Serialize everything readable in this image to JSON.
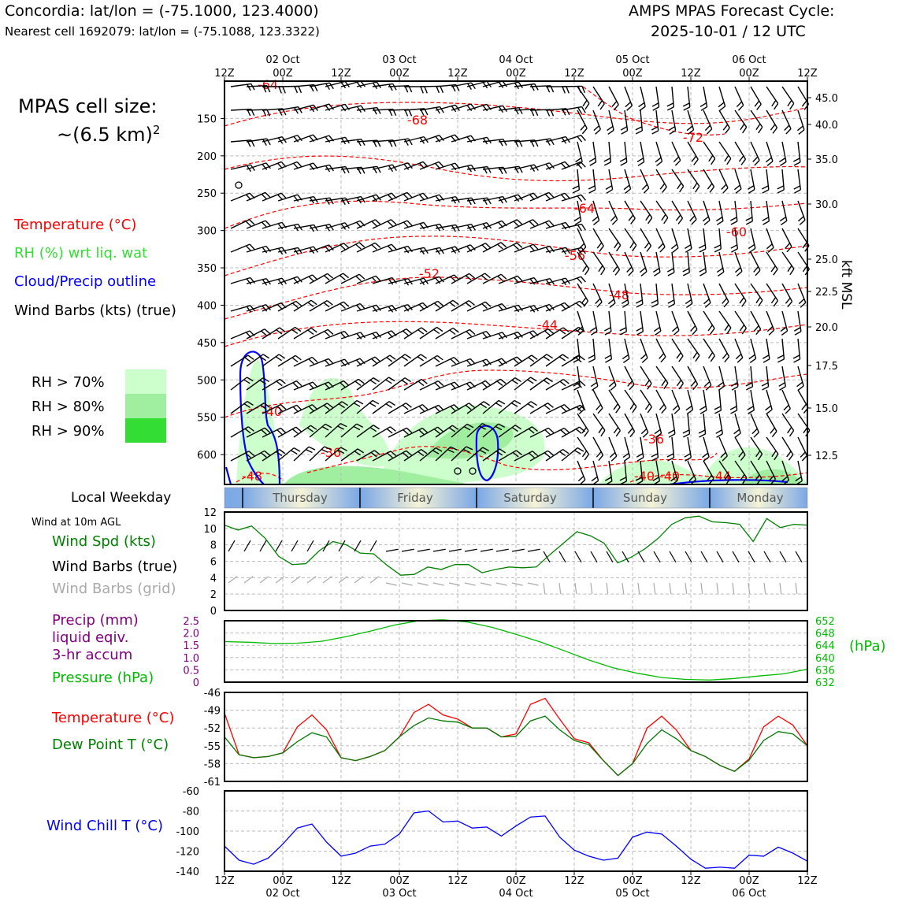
{
  "header": {
    "line1": "Concordia: lat/lon = (-75.1000, 123.4000)",
    "line2": "Nearest cell 1692079: lat/lon = (-75.1088, 123.3322)",
    "right1": "AMPS MPAS Forecast Cycle:",
    "right2": "2025-10-01 / 12 UTC"
  },
  "sidebar": {
    "cell_size_1": "MPAS cell size:",
    "cell_size_2": "~(6.5 km)",
    "cell_size_sup": "2",
    "temp": "Temperature (°C)",
    "rh": "RH (%) wrt liq. wat",
    "cloud": "Cloud/Precip outline",
    "wind": "Wind Barbs (kts) (true)",
    "rh70": "RH > 70%",
    "rh80": "RH > 80%",
    "rh90": "RH > 90%",
    "local_weekday": "Local Weekday",
    "wind10m": "Wind at 10m AGL",
    "wind_spd": "Wind Spd (kts)",
    "wind_barbs_true": "Wind Barbs (true)",
    "wind_barbs_grid": "Wind Barbs (grid)",
    "precip1": "Precip (mm)",
    "precip2": "liquid eqiv.",
    "precip3": "3-hr accum",
    "pressure": "Pressure (hPa)",
    "temp2": "Temperature (°C)",
    "dewpt": "Dew Point T (°C)",
    "windchill": "Wind Chill T (°C)"
  },
  "colors": {
    "temp": "#ff0000",
    "rh": "#33dd33",
    "cloud": "#0000ff",
    "wind": "#000000",
    "grid_barbs": "#a0a0a0",
    "precip": "#800080",
    "pressure": "#00bb00",
    "dewpoint": "#007700",
    "windchill": "#0000ff",
    "rh70": "#ccffcc",
    "rh80": "#a0eea0",
    "rh90": "#33dd33"
  },
  "chart_data": [
    {
      "type": "line",
      "name": "time-height cross section",
      "time_ticks": [
        "12Z",
        "00Z",
        "12Z",
        "00Z",
        "12Z",
        "00Z",
        "12Z",
        "00Z",
        "12Z",
        "00Z",
        "12Z"
      ],
      "date_labels": [
        "02 Oct",
        "03 Oct",
        "04 Oct",
        "05 Oct",
        "06 Oct"
      ],
      "y_pressure_ticks": [
        150,
        200,
        250,
        300,
        350,
        400,
        450,
        500,
        550,
        600
      ],
      "y_kft_ticks": [
        "45.0",
        "40.0",
        "35.0",
        "30.0",
        "25.0",
        "22.5",
        "20.0",
        "17.5",
        "15.0",
        "12.5"
      ],
      "y_right_label": "kft MSL",
      "ylim_hpa": [
        100,
        640
      ],
      "temperature_contour_labels": [
        "-64",
        "-68",
        "-72",
        "-64",
        "-60",
        "-56",
        "-52",
        "-48",
        "-44",
        "-40",
        "-36",
        "-36",
        "-40",
        "-40",
        "-44",
        "-48"
      ]
    },
    {
      "type": "line",
      "name": "weekday strip",
      "days": [
        "Thursday",
        "Friday",
        "Saturday",
        "Sunday",
        "Monday"
      ]
    },
    {
      "type": "line",
      "name": "wind speed",
      "ylim": [
        0,
        12
      ],
      "yticks": [
        0,
        2,
        4,
        6,
        8,
        10,
        12
      ],
      "series": [
        {
          "name": "Wind Spd (kts)",
          "values": [
            10.4,
            9.8,
            10.3,
            8.8,
            6.6,
            5.6,
            5.7,
            7.3,
            8.4,
            8.0,
            7.0,
            6.9,
            5.5,
            4.3,
            4.4,
            5.3,
            5.0,
            5.6,
            5.6,
            4.6,
            5.0,
            5.3,
            5.2,
            5.3,
            6.8,
            8.2,
            9.6,
            9.1,
            8.2,
            5.8,
            6.5,
            7.5,
            8.8,
            10.5,
            11.3,
            11.5,
            10.8,
            10.7,
            10.5,
            8.4,
            11.2,
            10.1,
            10.5,
            10.4
          ]
        }
      ]
    },
    {
      "type": "line",
      "name": "precip and pressure",
      "ylim_left": [
        0,
        2.5
      ],
      "yticks_left": [
        "0",
        "0.5",
        "1.0",
        "1.5",
        "2.0",
        "2.5"
      ],
      "yticks_right": [
        "632",
        "636",
        "640",
        "644",
        "648",
        "652"
      ],
      "ylim_right": [
        632,
        652
      ],
      "right_unit": "(hPa)",
      "series": [
        {
          "name": "Pressure (hPa)",
          "values": [
            645.2,
            645.0,
            644.6,
            644.7,
            645.3,
            646.8,
            648.6,
            650.6,
            652.0,
            652.3,
            651.6,
            649.9,
            647.6,
            645.1,
            642.2,
            639.2,
            636.7,
            634.9,
            633.5,
            632.9,
            632.7,
            633.2,
            634.0,
            634.7,
            636.2
          ]
        },
        {
          "name": "Precip (mm)",
          "values": [
            0,
            0,
            0,
            0,
            0,
            0,
            0,
            0,
            0,
            0,
            0,
            0,
            0,
            0,
            0,
            0,
            0,
            0,
            0,
            0,
            0,
            0,
            0,
            0,
            0,
            0,
            0,
            0,
            0,
            0,
            0,
            0,
            0,
            0,
            0,
            0,
            0,
            0,
            0,
            0,
            0,
            0,
            0,
            0
          ]
        }
      ]
    },
    {
      "type": "line",
      "name": "temperature and dew point",
      "ylim": [
        -61,
        -46
      ],
      "yticks": [
        -61,
        -58,
        -55,
        -52,
        -49,
        -46
      ],
      "series": [
        {
          "name": "Temperature (°C)",
          "values": [
            -49.5,
            -56.5,
            -57.0,
            -56.8,
            -56.2,
            -51.8,
            -49.8,
            -52.3,
            -57.0,
            -57.5,
            -56.8,
            -55.8,
            -53.5,
            -49.4,
            -48.0,
            -49.8,
            -50.5,
            -52.0,
            -52.0,
            -53.5,
            -53.0,
            -48.0,
            -47.0,
            -50.5,
            -53.8,
            -54.5,
            -57.5,
            -60.0,
            -58.0,
            -52.0,
            -50.0,
            -52.3,
            -55.8,
            -56.8,
            -58.3,
            -59.3,
            -57.2,
            -51.8,
            -50.0,
            -51.5,
            -55.0
          ]
        },
        {
          "name": "Dew Point T (°C)",
          "values": [
            -53.5,
            -56.5,
            -57.0,
            -56.8,
            -56.2,
            -54.3,
            -52.8,
            -53.5,
            -57.0,
            -57.5,
            -56.8,
            -55.8,
            -53.5,
            -51.6,
            -50.3,
            -50.8,
            -51.0,
            -52.0,
            -52.0,
            -53.5,
            -53.4,
            -50.8,
            -50.0,
            -52.3,
            -54.1,
            -54.8,
            -57.5,
            -60.0,
            -58.0,
            -54.6,
            -52.3,
            -53.8,
            -55.8,
            -56.8,
            -58.3,
            -59.3,
            -57.4,
            -54.1,
            -52.6,
            -53.0,
            -55.0
          ]
        }
      ]
    },
    {
      "type": "line",
      "name": "wind chill",
      "ylim": [
        -140,
        -60
      ],
      "yticks": [
        -140,
        -120,
        -100,
        -80,
        -60
      ],
      "series": [
        {
          "name": "Wind Chill T (°C)",
          "values": [
            -115,
            -129,
            -133,
            -127,
            -113,
            -97,
            -93,
            -111,
            -125,
            -122,
            -115,
            -113,
            -103,
            -82,
            -80,
            -91,
            -90,
            -97,
            -96,
            -105,
            -95,
            -86,
            -85,
            -106,
            -119,
            -125,
            -129,
            -127,
            -106,
            -101,
            -103,
            -115,
            -128,
            -137,
            -136,
            -137,
            -124,
            -125,
            -116,
            -122,
            -130
          ]
        }
      ]
    }
  ],
  "bottom_axis": {
    "ticks": [
      "12Z",
      "00Z",
      "12Z",
      "00Z",
      "12Z",
      "00Z",
      "12Z",
      "00Z",
      "12Z",
      "00Z",
      "12Z"
    ],
    "dates": [
      "02 Oct",
      "03 Oct",
      "04 Oct",
      "05 Oct",
      "06 Oct"
    ]
  }
}
